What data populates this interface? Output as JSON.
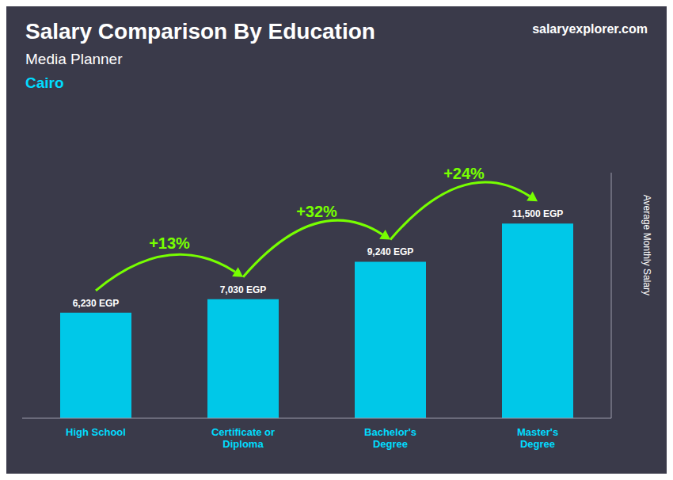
{
  "chart_data": {
    "type": "bar",
    "title": "Salary Comparison By Education",
    "subtitle": [
      "Media Planner",
      "Cairo"
    ],
    "ylabel": "Average Monthly Salary",
    "categories": [
      "High School",
      "Certificate or\nDiploma",
      "Bachelor's\nDegree",
      "Master's\nDegree"
    ],
    "values": [
      6230,
      7030,
      9240,
      11500
    ],
    "value_labels": [
      "6,230 EGP",
      "7,030 EGP",
      "9,240 EGP",
      "11,500 EGP"
    ],
    "data_labels": true,
    "color": "#00C8E8",
    "ylim": [
      0,
      14500
    ],
    "tick_labels": "x",
    "annotations": [
      {
        "text": "+13%",
        "from": "High School",
        "to": "Certificate or\nDiploma",
        "color": "#77FF00"
      },
      {
        "text": "+32%",
        "from": "Certificate or\nDiploma",
        "to": "Bachelor's\nDegree",
        "color": "#77FF00"
      },
      {
        "text": "+24%",
        "from": "Bachelor's\nDegree",
        "to": "Master's\nDegree",
        "color": "#77FF00"
      },
      {
        "text": "salaryexplorer.com"
      }
    ]
  }
}
